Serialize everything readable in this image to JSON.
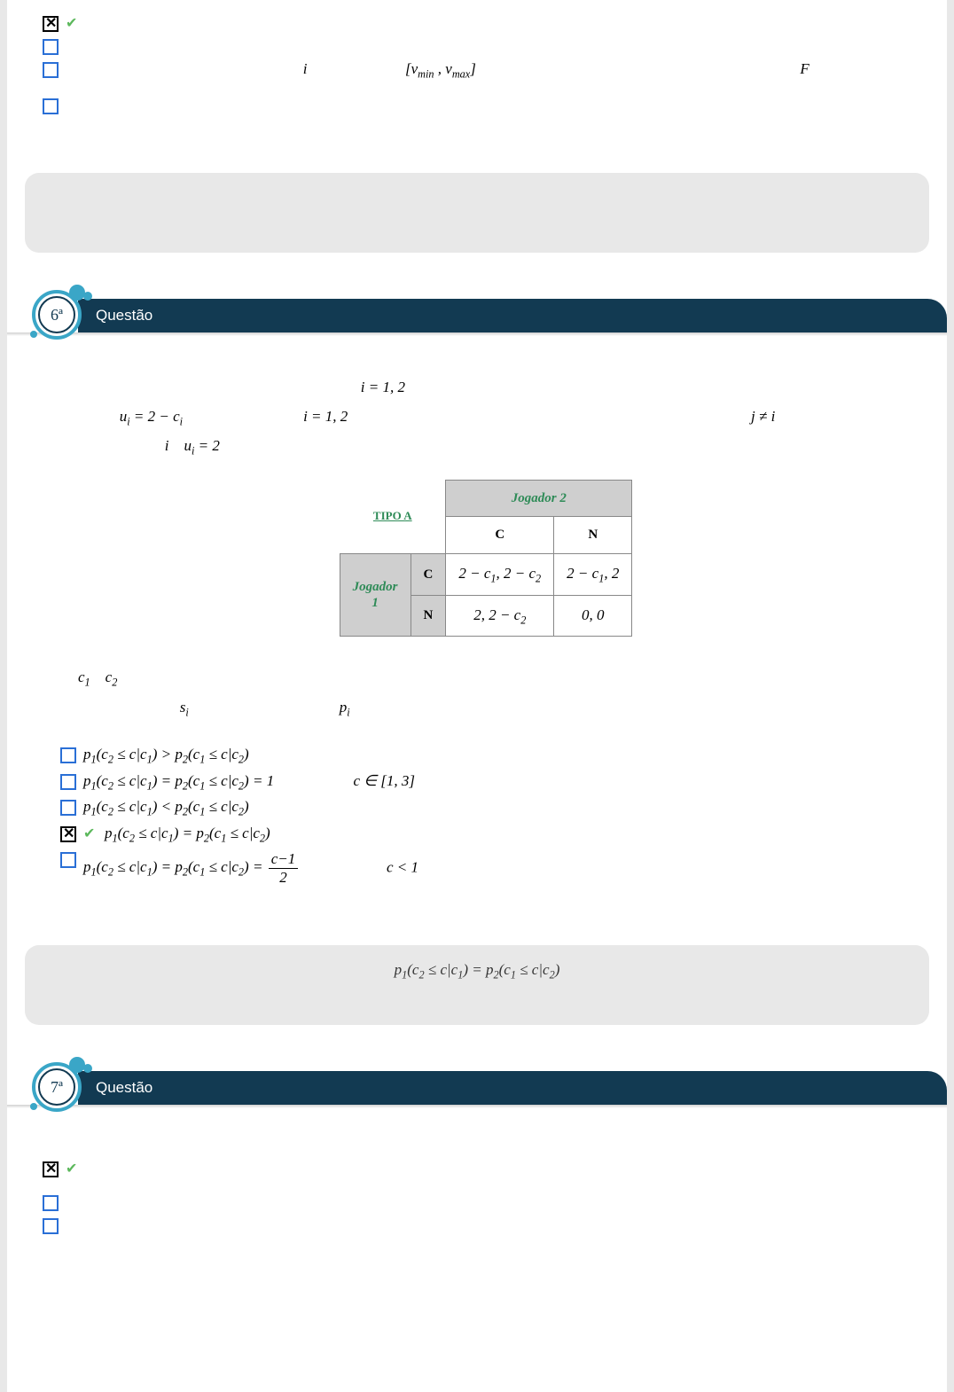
{
  "q5_tail": {
    "options": [
      {
        "checked": true,
        "correct": true,
        "content_html": ""
      },
      {
        "checked": false,
        "correct": false,
        "content_html": ""
      },
      {
        "checked": false,
        "correct": false,
        "content_html": "&nbsp;&nbsp;&nbsp;&nbsp;&nbsp;&nbsp;&nbsp;&nbsp;&nbsp;&nbsp;&nbsp;&nbsp;&nbsp;&nbsp;&nbsp;&nbsp;&nbsp;&nbsp;&nbsp;&nbsp;&nbsp;&nbsp;&nbsp;&nbsp;&nbsp;&nbsp;&nbsp;&nbsp;&nbsp;&nbsp;&nbsp;&nbsp;&nbsp;&nbsp;&nbsp;&nbsp;&nbsp;&nbsp;&nbsp;&nbsp;&nbsp;&nbsp;&nbsp;&nbsp;&nbsp;&nbsp;&nbsp;&nbsp;&nbsp;&nbsp;&nbsp;&nbsp;&nbsp;&nbsp;&nbsp;&nbsp;&nbsp;&nbsp;&nbsp;&nbsp;&nbsp;&nbsp; <span class=\"math\">i</span> &nbsp;&nbsp;&nbsp;&nbsp;&nbsp;&nbsp;&nbsp;&nbsp;&nbsp;&nbsp;&nbsp;&nbsp;&nbsp;&nbsp;&nbsp;&nbsp;&nbsp;&nbsp;&nbsp;&nbsp;&nbsp;&nbsp;&nbsp;&nbsp; <span class=\"math\">[v<sub>min</sub> , v<sub>max</sub>]</span> &nbsp;&nbsp;&nbsp;&nbsp;&nbsp;&nbsp;&nbsp;&nbsp;&nbsp;&nbsp;&nbsp;&nbsp;&nbsp;&nbsp;&nbsp;&nbsp;&nbsp;&nbsp;&nbsp;&nbsp;&nbsp;&nbsp;&nbsp;&nbsp;&nbsp;&nbsp;&nbsp;&nbsp;&nbsp;&nbsp;&nbsp;&nbsp;&nbsp;&nbsp;&nbsp;&nbsp;&nbsp;&nbsp;&nbsp;&nbsp;&nbsp;&nbsp;&nbsp;&nbsp;&nbsp;&nbsp;&nbsp;&nbsp;&nbsp;&nbsp;&nbsp;&nbsp;&nbsp;&nbsp;&nbsp;&nbsp;&nbsp;&nbsp;&nbsp;&nbsp;&nbsp;&nbsp;&nbsp;&nbsp;&nbsp;&nbsp;&nbsp;&nbsp;&nbsp;&nbsp;&nbsp;&nbsp;&nbsp;&nbsp;&nbsp;&nbsp;&nbsp;&nbsp;&nbsp;&nbsp;&nbsp;&nbsp;&nbsp;&nbsp; <span class=\"math\">F</span>"
      },
      {
        "checked": false,
        "correct": false,
        "content_html": ""
      }
    ]
  },
  "q6": {
    "number": "6ª",
    "title": "Questão",
    "body_line1_html": "&nbsp;&nbsp;&nbsp;&nbsp;&nbsp;&nbsp;&nbsp;&nbsp;&nbsp;&nbsp;&nbsp;&nbsp;&nbsp;&nbsp;&nbsp;&nbsp;&nbsp;&nbsp;&nbsp;&nbsp;&nbsp;&nbsp;&nbsp;&nbsp;&nbsp;&nbsp;&nbsp;&nbsp;&nbsp;&nbsp;&nbsp;&nbsp;&nbsp;&nbsp;&nbsp;&nbsp;&nbsp;&nbsp;&nbsp;&nbsp;&nbsp;&nbsp;&nbsp;&nbsp;&nbsp;&nbsp;&nbsp;&nbsp;&nbsp;&nbsp;&nbsp;&nbsp;&nbsp;&nbsp;&nbsp;&nbsp;&nbsp;&nbsp;&nbsp;&nbsp;&nbsp;&nbsp;&nbsp;&nbsp;&nbsp;&nbsp;&nbsp;&nbsp;&nbsp;&nbsp;&nbsp;&nbsp;&nbsp;&nbsp;&nbsp;<span class=\"math\">i = 1, 2</span>",
    "body_line2_html": "&nbsp;&nbsp;&nbsp;&nbsp;&nbsp;&nbsp;&nbsp;&nbsp;&nbsp;&nbsp;&nbsp;<span class=\"math\">u<sub>i</sub> = 2 − c<sub>i</sub></span>&nbsp;&nbsp;&nbsp;&nbsp;&nbsp;&nbsp;&nbsp;&nbsp;&nbsp;&nbsp;&nbsp;&nbsp;&nbsp;&nbsp;&nbsp;&nbsp;&nbsp;&nbsp;&nbsp;&nbsp;&nbsp;&nbsp;&nbsp;&nbsp;&nbsp;&nbsp;&nbsp;&nbsp;&nbsp;&nbsp;&nbsp; <span class=\"math\">i = 1, 2</span>&nbsp;&nbsp;&nbsp;&nbsp;&nbsp;&nbsp;&nbsp;&nbsp;&nbsp;&nbsp;&nbsp;&nbsp;&nbsp;&nbsp;&nbsp;&nbsp;&nbsp;&nbsp;&nbsp;&nbsp;&nbsp;&nbsp;&nbsp;&nbsp;&nbsp;&nbsp;&nbsp;&nbsp;&nbsp;&nbsp;&nbsp;&nbsp;&nbsp;&nbsp;&nbsp;&nbsp;&nbsp;&nbsp;&nbsp;&nbsp;&nbsp;&nbsp;&nbsp;&nbsp;&nbsp;&nbsp;&nbsp;&nbsp;&nbsp;&nbsp;&nbsp;&nbsp;&nbsp;&nbsp;&nbsp;&nbsp;&nbsp;&nbsp;&nbsp;&nbsp;&nbsp;&nbsp;&nbsp;&nbsp;&nbsp;&nbsp;&nbsp;&nbsp;&nbsp;&nbsp;&nbsp;&nbsp;&nbsp;&nbsp;&nbsp;&nbsp;&nbsp;&nbsp;&nbsp;&nbsp;&nbsp;&nbsp;&nbsp;&nbsp;&nbsp;&nbsp;&nbsp;&nbsp;&nbsp;&nbsp;&nbsp;&nbsp;&nbsp;&nbsp;&nbsp;&nbsp;&nbsp;&nbsp;&nbsp;&nbsp;&nbsp;&nbsp;&nbsp;&nbsp;&nbsp;&nbsp; <span class=\"math\">j ≠ i</span>",
    "body_line3_html": "&nbsp;&nbsp;&nbsp;&nbsp;&nbsp;&nbsp;&nbsp;&nbsp;&nbsp;&nbsp;&nbsp;&nbsp;&nbsp;&nbsp;&nbsp;&nbsp;&nbsp;&nbsp;&nbsp;&nbsp;&nbsp;&nbsp;&nbsp;<span class=\"math\">i</span>&nbsp;&nbsp;&nbsp;&nbsp;<span class=\"math\">u<sub>i</sub> = 2</span>",
    "table": {
      "tipo_label": "TIPO A",
      "player2_label": "Jogador 2",
      "player1_label": "Jogador",
      "player1_sub": "1",
      "col_C": "C",
      "col_N": "N",
      "row_C": "C",
      "row_N": "N",
      "cells": {
        "CC": "2 − c<sub>1</sub>, 2 − c<sub>2</sub>",
        "CN": "2 − c<sub>1</sub>, 2",
        "NC": "2, 2 − c<sub>2</sub>",
        "NN": "0, 0"
      },
      "colors": {
        "header_bg": "#cfcfcf",
        "accent_text": "#2e8b57",
        "border": "#888888"
      }
    },
    "after_table_line1_html": "<span class=\"math\">c<sub>1</sub></span>&nbsp;&nbsp;&nbsp;&nbsp;<span class=\"math\">c<sub>2</sub></span>",
    "after_table_line2_html": "&nbsp;&nbsp;&nbsp;&nbsp;&nbsp;&nbsp;&nbsp;&nbsp;&nbsp;&nbsp;&nbsp;&nbsp;&nbsp;&nbsp;&nbsp;&nbsp;&nbsp;&nbsp;&nbsp;&nbsp;&nbsp;&nbsp;&nbsp;&nbsp;&nbsp;&nbsp;&nbsp;<span class=\"math\">s<sub>i</sub></span>&nbsp;&nbsp;&nbsp;&nbsp;&nbsp;&nbsp;&nbsp;&nbsp;&nbsp;&nbsp;&nbsp;&nbsp;&nbsp;&nbsp;&nbsp;&nbsp;&nbsp;&nbsp;&nbsp;&nbsp;&nbsp;&nbsp;&nbsp;&nbsp;&nbsp;&nbsp;&nbsp;&nbsp;&nbsp;&nbsp;&nbsp;&nbsp;&nbsp;&nbsp;&nbsp;&nbsp;&nbsp;&nbsp;&nbsp;&nbsp;<span class=\"math\">p<sub>i</sub></span>",
    "options": [
      {
        "checked": false,
        "correct": false,
        "content_html": "<span class=\"math\">p<sub>1</sub>(c<sub>2</sub> ≤ c|c<sub>1</sub>) &gt; p<sub>2</sub>(c<sub>1</sub> ≤ c|c<sub>2</sub>)</span>"
      },
      {
        "checked": false,
        "correct": false,
        "content_html": "<span class=\"math\">p<sub>1</sub>(c<sub>2</sub> ≤ c|c<sub>1</sub>) = p<sub>2</sub>(c<sub>1</sub> ≤ c|c<sub>2</sub>) = 1</span>&nbsp;&nbsp;&nbsp;&nbsp;&nbsp;&nbsp;&nbsp;&nbsp;&nbsp;&nbsp;&nbsp;&nbsp;&nbsp;&nbsp;&nbsp;&nbsp;&nbsp;&nbsp;&nbsp;&nbsp;&nbsp;<span class=\"math\">c ∈ [1, 3]</span>"
      },
      {
        "checked": false,
        "correct": false,
        "content_html": "<span class=\"math\">p<sub>1</sub>(c<sub>2</sub> ≤ c|c<sub>1</sub>) &lt; p<sub>2</sub>(c<sub>1</sub> ≤ c|c<sub>2</sub>)</span>"
      },
      {
        "checked": true,
        "correct": true,
        "content_html": "<span class=\"math\">p<sub>1</sub>(c<sub>2</sub> ≤ c|c<sub>1</sub>) = p<sub>2</sub>(c<sub>1</sub> ≤ c|c<sub>2</sub>)</span>"
      },
      {
        "checked": false,
        "correct": false,
        "content_html": "<span class=\"math\">p<sub>1</sub>(c<sub>2</sub> ≤ c|c<sub>1</sub>) = p<sub>2</sub>(c<sub>1</sub> ≤ c|c<sub>2</sub>) = </span><span class=\"frac\"><span class=\"num math\">c−1</span><span class=\"den math\">2</span></span>&nbsp;&nbsp;&nbsp;&nbsp;&nbsp;&nbsp;&nbsp;&nbsp;&nbsp;&nbsp;&nbsp;&nbsp;&nbsp;&nbsp;&nbsp;&nbsp;&nbsp;&nbsp;&nbsp;&nbsp;&nbsp;&nbsp;&nbsp;<span class=\"math\">c &lt; 1</span>"
      }
    ],
    "feedback_html": "<span class=\"math\">p<sub>1</sub>(c<sub>2</sub> ≤ c|c<sub>1</sub>) = p<sub>2</sub>(c<sub>1</sub> ≤ c|c<sub>2</sub>)</span>"
  },
  "q7": {
    "number": "7ª",
    "title": "Questão",
    "options": [
      {
        "checked": true,
        "correct": true,
        "content_html": ""
      },
      {
        "checked": false,
        "correct": false,
        "content_html": ""
      },
      {
        "checked": false,
        "correct": false,
        "content_html": ""
      }
    ]
  },
  "style": {
    "accent": "#123a52",
    "badge_ring": "#3aa6c7",
    "checkbox_border": "#2a6fd6",
    "correct_mark": "#5cb85c",
    "feedback_bg": "#e8e8e8"
  }
}
